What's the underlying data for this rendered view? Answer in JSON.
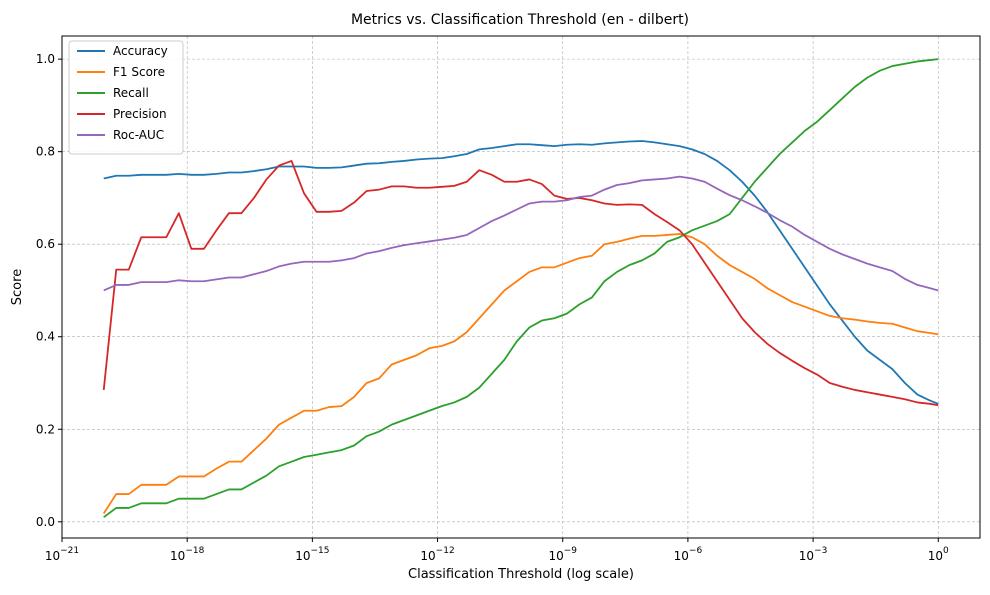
{
  "chart_data": {
    "type": "line",
    "title": "Metrics vs. Classification Threshold (en - dilbert)",
    "xlabel": "Classification Threshold (log scale)",
    "ylabel": "Score",
    "xscale": "log",
    "xlim_exp": [
      -21,
      1
    ],
    "ylim": [
      -0.035,
      1.05
    ],
    "grid": true,
    "legend_position": "top-left",
    "x_exponents": [
      -20,
      -19.7,
      -19.4,
      -19.1,
      -18.8,
      -18.5,
      -18.2,
      -17.9,
      -17.6,
      -17.3,
      -17,
      -16.7,
      -16.4,
      -16.1,
      -15.8,
      -15.5,
      -15.2,
      -14.9,
      -14.6,
      -14.3,
      -14,
      -13.7,
      -13.4,
      -13.1,
      -12.8,
      -12.5,
      -12.2,
      -11.9,
      -11.6,
      -11.3,
      -11,
      -10.7,
      -10.4,
      -10.1,
      -9.8,
      -9.5,
      -9.2,
      -8.9,
      -8.6,
      -8.3,
      -8,
      -7.7,
      -7.4,
      -7.1,
      -6.8,
      -6.5,
      -6.2,
      -5.9,
      -5.6,
      -5.3,
      -5,
      -4.7,
      -4.4,
      -4.1,
      -3.8,
      -3.5,
      -3.2,
      -2.9,
      -2.6,
      -2.3,
      -2,
      -1.7,
      -1.4,
      -1.1,
      -0.8,
      -0.5,
      -0.2,
      0
    ],
    "series": [
      {
        "name": "Accuracy",
        "color": "#1f77b4",
        "values": [
          0.742,
          0.748,
          0.748,
          0.75,
          0.75,
          0.75,
          0.752,
          0.75,
          0.75,
          0.752,
          0.755,
          0.755,
          0.758,
          0.762,
          0.768,
          0.768,
          0.768,
          0.765,
          0.765,
          0.766,
          0.77,
          0.774,
          0.775,
          0.778,
          0.78,
          0.783,
          0.785,
          0.786,
          0.79,
          0.795,
          0.805,
          0.808,
          0.812,
          0.816,
          0.816,
          0.814,
          0.812,
          0.815,
          0.816,
          0.815,
          0.818,
          0.82,
          0.822,
          0.823,
          0.82,
          0.816,
          0.812,
          0.805,
          0.795,
          0.78,
          0.76,
          0.735,
          0.705,
          0.67,
          0.63,
          0.59,
          0.55,
          0.51,
          0.47,
          0.435,
          0.4,
          0.37,
          0.35,
          0.33,
          0.3,
          0.275,
          0.262,
          0.255
        ]
      },
      {
        "name": "F1 Score",
        "color": "#ff7f0e",
        "values": [
          0.018,
          0.06,
          0.06,
          0.08,
          0.08,
          0.08,
          0.098,
          0.098,
          0.098,
          0.115,
          0.13,
          0.13,
          0.155,
          0.18,
          0.21,
          0.225,
          0.24,
          0.24,
          0.248,
          0.25,
          0.27,
          0.3,
          0.31,
          0.34,
          0.35,
          0.36,
          0.375,
          0.38,
          0.39,
          0.41,
          0.44,
          0.47,
          0.5,
          0.52,
          0.54,
          0.55,
          0.55,
          0.56,
          0.57,
          0.575,
          0.6,
          0.605,
          0.612,
          0.618,
          0.618,
          0.62,
          0.622,
          0.615,
          0.6,
          0.575,
          0.555,
          0.54,
          0.525,
          0.505,
          0.49,
          0.475,
          0.465,
          0.455,
          0.445,
          0.44,
          0.437,
          0.433,
          0.43,
          0.428,
          0.42,
          0.412,
          0.408,
          0.405
        ]
      },
      {
        "name": "Recall",
        "color": "#2ca02c",
        "values": [
          0.01,
          0.03,
          0.03,
          0.04,
          0.04,
          0.04,
          0.05,
          0.05,
          0.05,
          0.06,
          0.07,
          0.07,
          0.085,
          0.1,
          0.12,
          0.13,
          0.14,
          0.145,
          0.15,
          0.155,
          0.165,
          0.185,
          0.195,
          0.21,
          0.22,
          0.23,
          0.24,
          0.25,
          0.258,
          0.27,
          0.29,
          0.32,
          0.35,
          0.39,
          0.42,
          0.435,
          0.44,
          0.45,
          0.47,
          0.485,
          0.52,
          0.54,
          0.555,
          0.565,
          0.58,
          0.605,
          0.615,
          0.63,
          0.64,
          0.65,
          0.665,
          0.7,
          0.735,
          0.765,
          0.795,
          0.82,
          0.845,
          0.865,
          0.89,
          0.915,
          0.94,
          0.96,
          0.975,
          0.985,
          0.99,
          0.995,
          0.998,
          1.0
        ]
      },
      {
        "name": "Precision",
        "color": "#d62728",
        "values": [
          0.285,
          0.545,
          0.545,
          0.615,
          0.615,
          0.615,
          0.667,
          0.59,
          0.59,
          0.63,
          0.667,
          0.667,
          0.7,
          0.74,
          0.77,
          0.78,
          0.71,
          0.67,
          0.67,
          0.672,
          0.69,
          0.715,
          0.718,
          0.725,
          0.725,
          0.722,
          0.722,
          0.724,
          0.726,
          0.735,
          0.76,
          0.75,
          0.735,
          0.735,
          0.74,
          0.73,
          0.705,
          0.698,
          0.7,
          0.695,
          0.688,
          0.685,
          0.686,
          0.685,
          0.665,
          0.648,
          0.63,
          0.6,
          0.56,
          0.52,
          0.48,
          0.44,
          0.41,
          0.385,
          0.365,
          0.348,
          0.332,
          0.318,
          0.3,
          0.292,
          0.285,
          0.28,
          0.275,
          0.27,
          0.265,
          0.258,
          0.255,
          0.252
        ]
      },
      {
        "name": "Roc-AUC",
        "color": "#9467bd",
        "values": [
          0.5,
          0.512,
          0.512,
          0.518,
          0.518,
          0.518,
          0.522,
          0.52,
          0.52,
          0.524,
          0.528,
          0.528,
          0.535,
          0.542,
          0.552,
          0.558,
          0.562,
          0.562,
          0.562,
          0.565,
          0.57,
          0.58,
          0.585,
          0.592,
          0.598,
          0.602,
          0.606,
          0.61,
          0.614,
          0.62,
          0.635,
          0.65,
          0.662,
          0.675,
          0.688,
          0.692,
          0.692,
          0.695,
          0.702,
          0.705,
          0.718,
          0.728,
          0.732,
          0.738,
          0.74,
          0.742,
          0.746,
          0.742,
          0.735,
          0.72,
          0.706,
          0.695,
          0.682,
          0.668,
          0.652,
          0.638,
          0.62,
          0.605,
          0.59,
          0.578,
          0.568,
          0.558,
          0.55,
          0.542,
          0.525,
          0.512,
          0.505,
          0.5
        ]
      }
    ],
    "y_ticks": [
      0.0,
      0.2,
      0.4,
      0.6,
      0.8,
      1.0
    ],
    "y_tick_labels": [
      "0.0",
      "0.2",
      "0.4",
      "0.6",
      "0.8",
      "1.0"
    ],
    "x_tick_exponents": [
      -21,
      -18,
      -15,
      -12,
      -9,
      -6,
      -3,
      0
    ],
    "x_tick_labels": [
      "10^-21",
      "10^-18",
      "10^-15",
      "10^-12",
      "10^-9",
      "10^-6",
      "10^-3",
      "10^0"
    ]
  }
}
